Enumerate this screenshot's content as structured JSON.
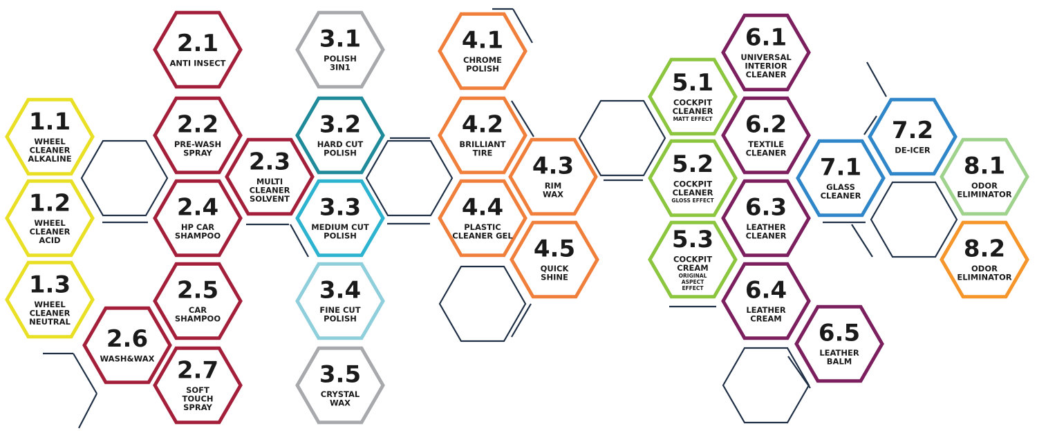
{
  "colors": {
    "red": "#a31f3a",
    "gray": "#a7a9ac",
    "teal": "#1f8a99",
    "cyan": "#2cb3cf",
    "light_blue": "#8fcfdc",
    "orange": "#f07f3c",
    "green": "#8cc63f",
    "purple": "#7b1f5e",
    "yellow": "#e9e026",
    "blue": "#2f86c8",
    "light_green": "#9fd28c",
    "amber": "#f5952a",
    "navy": "#1f2f45"
  },
  "products": [
    {
      "code": "1.1",
      "color": "yellow",
      "lines": [
        "WHEEL",
        "CLEANER",
        "ALKALINE"
      ],
      "sub": []
    },
    {
      "code": "1.2",
      "color": "yellow",
      "lines": [
        "WHEEL",
        "CLEANER",
        "ACID"
      ],
      "sub": []
    },
    {
      "code": "1.3",
      "color": "yellow",
      "lines": [
        "WHEEL",
        "CLEANER",
        "NEUTRAL"
      ],
      "sub": []
    },
    {
      "code": "2.1",
      "color": "red",
      "lines": [
        "ANTI INSECT"
      ],
      "sub": []
    },
    {
      "code": "2.2",
      "color": "red",
      "lines": [
        "PRE-WASH",
        "SPRAY"
      ],
      "sub": []
    },
    {
      "code": "2.3",
      "color": "red",
      "lines": [
        "MULTI",
        "CLEANER",
        "SOLVENT"
      ],
      "sub": []
    },
    {
      "code": "2.4",
      "color": "red",
      "lines": [
        "HP CAR",
        "SHAMPOO"
      ],
      "sub": []
    },
    {
      "code": "2.5",
      "color": "red",
      "lines": [
        "CAR",
        "SHAMPOO"
      ],
      "sub": []
    },
    {
      "code": "2.6",
      "color": "red",
      "lines": [
        "WASH&WAX"
      ],
      "sub": []
    },
    {
      "code": "2.7",
      "color": "red",
      "lines": [
        "SOFT",
        "TOUCH",
        "SPRAY"
      ],
      "sub": []
    },
    {
      "code": "3.1",
      "color": "gray",
      "lines": [
        "POLISH",
        "3IN1"
      ],
      "sub": []
    },
    {
      "code": "3.2",
      "color": "teal",
      "lines": [
        "HARD CUT",
        "POLISH"
      ],
      "sub": []
    },
    {
      "code": "3.3",
      "color": "cyan",
      "lines": [
        "MEDIUM CUT",
        "POLISH"
      ],
      "sub": []
    },
    {
      "code": "3.4",
      "color": "light_blue",
      "lines": [
        "FINE CUT",
        "POLISH"
      ],
      "sub": []
    },
    {
      "code": "3.5",
      "color": "gray",
      "lines": [
        "CRYSTAL",
        "WAX"
      ],
      "sub": []
    },
    {
      "code": "4.1",
      "color": "orange",
      "lines": [
        "CHROME",
        "POLISH"
      ],
      "sub": []
    },
    {
      "code": "4.2",
      "color": "orange",
      "lines": [
        "BRILLIANT",
        "TIRE"
      ],
      "sub": []
    },
    {
      "code": "4.3",
      "color": "orange",
      "lines": [
        "RIM",
        "WAX"
      ],
      "sub": []
    },
    {
      "code": "4.4",
      "color": "orange",
      "lines": [
        "PLASTIC",
        "CLEANER GEL"
      ],
      "sub": []
    },
    {
      "code": "4.5",
      "color": "orange",
      "lines": [
        "QUICK",
        "SHINE"
      ],
      "sub": []
    },
    {
      "code": "5.1",
      "color": "green",
      "lines": [
        "COCKPIT",
        "CLEANER"
      ],
      "sub": [
        "MATT EFFECT"
      ]
    },
    {
      "code": "5.2",
      "color": "green",
      "lines": [
        "COCKPIT",
        "CLEANER"
      ],
      "sub": [
        "GLOSS EFFECT"
      ]
    },
    {
      "code": "5.3",
      "color": "green",
      "lines": [
        "COCKPIT",
        "CREAM"
      ],
      "sub": [
        "ORIGINAL",
        "ASPECT",
        "EFFECT"
      ]
    },
    {
      "code": "6.1",
      "color": "purple",
      "lines": [
        "UNIVERSAL",
        "INTERIOR",
        "CLEANER"
      ],
      "sub": []
    },
    {
      "code": "6.2",
      "color": "purple",
      "lines": [
        "TEXTILE",
        "CLEANER"
      ],
      "sub": []
    },
    {
      "code": "6.3",
      "color": "purple",
      "lines": [
        "LEATHER",
        "CLEANER"
      ],
      "sub": []
    },
    {
      "code": "6.4",
      "color": "purple",
      "lines": [
        "LEATHER",
        "CREAM"
      ],
      "sub": []
    },
    {
      "code": "6.5",
      "color": "purple",
      "lines": [
        "LEATHER",
        "BALM"
      ],
      "sub": []
    },
    {
      "code": "7.1",
      "color": "blue",
      "lines": [
        "GLASS",
        "CLEANER"
      ],
      "sub": []
    },
    {
      "code": "7.2",
      "color": "blue",
      "lines": [
        "DE-ICER"
      ],
      "sub": []
    },
    {
      "code": "8.1",
      "color": "light_green",
      "lines": [
        "ODOR",
        "ELIMINATOR"
      ],
      "sub": []
    },
    {
      "code": "8.2",
      "color": "amber",
      "lines": [
        "ODOR",
        "ELIMINATOR"
      ],
      "sub": []
    }
  ]
}
